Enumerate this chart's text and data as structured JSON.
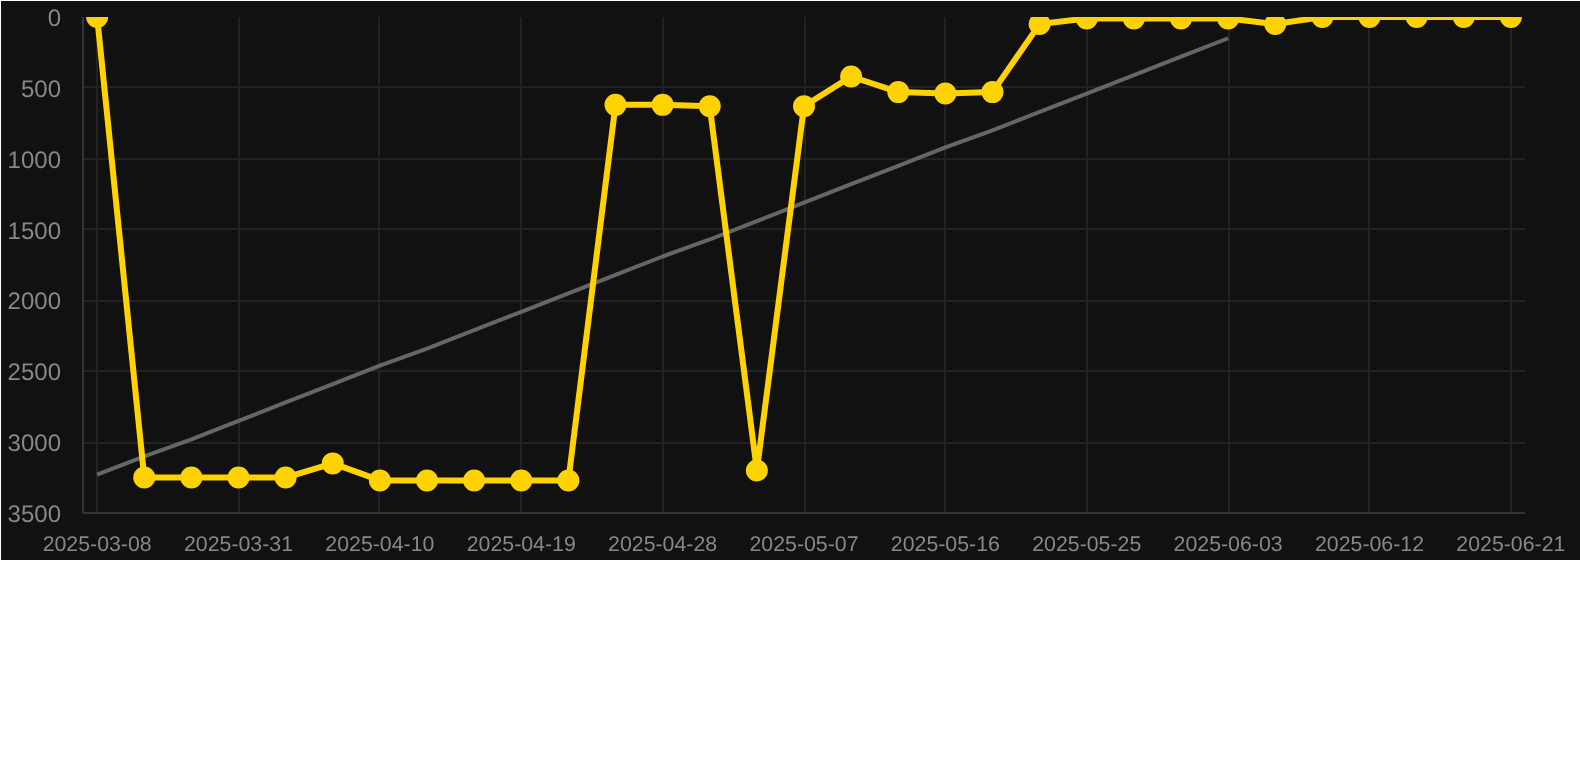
{
  "chart_data": {
    "type": "line",
    "categories": [
      "2025-03-08",
      null,
      null,
      "2025-03-31",
      null,
      null,
      "2025-04-10",
      null,
      null,
      "2025-04-19",
      null,
      null,
      "2025-04-28",
      null,
      null,
      "2025-05-07",
      null,
      null,
      "2025-05-16",
      null,
      null,
      "2025-05-25",
      null,
      null,
      "2025-06-03",
      null,
      null,
      "2025-06-12",
      null,
      null,
      "2025-06-21"
    ],
    "series": [
      {
        "color": "#ffd200",
        "marker": "circle",
        "values": [
          0,
          3250,
          3250,
          3250,
          3250,
          3150,
          3270,
          3270,
          3270,
          3270,
          3270,
          620,
          620,
          630,
          3200,
          630,
          420,
          530,
          540,
          530,
          50,
          10,
          10,
          10,
          10,
          50,
          0,
          0,
          0,
          0,
          0
        ]
      },
      {
        "color": "#666666",
        "marker": "none",
        "values": [
          3230,
          3100,
          2980,
          2850,
          2720,
          2590,
          2460,
          2340,
          2210,
          2080,
          1950,
          1820,
          1690,
          1570,
          1440,
          1310,
          1180,
          1050,
          920,
          800,
          670,
          540,
          410,
          280,
          150,
          null,
          null,
          null,
          null,
          null,
          null
        ]
      }
    ],
    "ylim": [
      3500,
      0
    ],
    "yticks": [
      0,
      500,
      1000,
      1500,
      2000,
      2500,
      3000,
      3500
    ],
    "grid": true
  }
}
